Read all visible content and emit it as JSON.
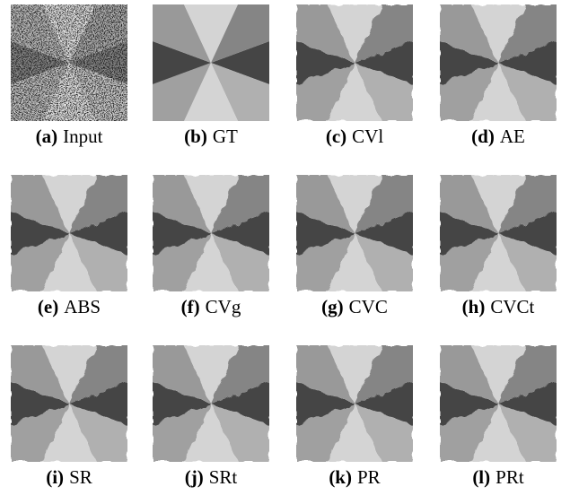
{
  "panels": [
    {
      "label": "(a)",
      "name": "Input"
    },
    {
      "label": "(b)",
      "name": "GT"
    },
    {
      "label": "(c)",
      "name": "CVl"
    },
    {
      "label": "(d)",
      "name": "AE"
    },
    {
      "label": "(e)",
      "name": "ABS"
    },
    {
      "label": "(f)",
      "name": "CVg"
    },
    {
      "label": "(g)",
      "name": "CVC"
    },
    {
      "label": "(h)",
      "name": "CVCt"
    },
    {
      "label": "(i)",
      "name": "SR"
    },
    {
      "label": "(j)",
      "name": "SRt"
    },
    {
      "label": "(k)",
      "name": "PR"
    },
    {
      "label": "(l)",
      "name": "PRt"
    }
  ]
}
